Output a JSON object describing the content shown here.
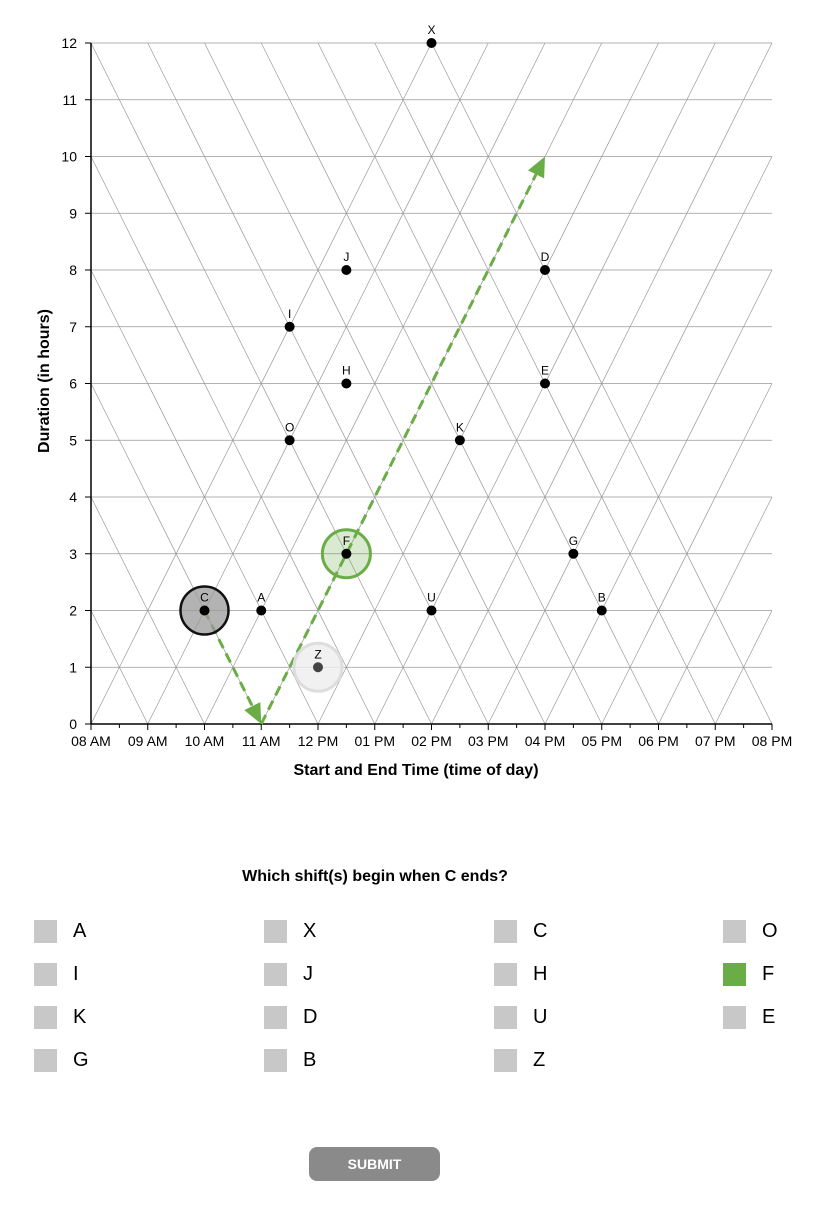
{
  "chart_data": {
    "type": "scatter",
    "subtype": "triangular-time-grid",
    "xlabel": "Start and End Time (time of day)",
    "ylabel": "Duration (in hours)",
    "x_ticks": [
      "08 AM",
      "09 AM",
      "10 AM",
      "11 AM",
      "12 PM",
      "01 PM",
      "02 PM",
      "03 PM",
      "04 PM",
      "05 PM",
      "06 PM",
      "07 PM",
      "08 PM"
    ],
    "y_ticks": [
      "0",
      "1",
      "2",
      "3",
      "4",
      "5",
      "6",
      "7",
      "8",
      "9",
      "10",
      "11",
      "12"
    ],
    "xlim": [
      8,
      20
    ],
    "ylim": [
      0,
      12
    ],
    "grid": true,
    "points": [
      {
        "label": "X",
        "midpoint": 14.0,
        "duration": 12
      },
      {
        "label": "J",
        "midpoint": 12.5,
        "duration": 8
      },
      {
        "label": "D",
        "midpoint": 16.0,
        "duration": 8
      },
      {
        "label": "I",
        "midpoint": 11.5,
        "duration": 7
      },
      {
        "label": "H",
        "midpoint": 12.5,
        "duration": 6
      },
      {
        "label": "E",
        "midpoint": 16.0,
        "duration": 6
      },
      {
        "label": "O",
        "midpoint": 11.5,
        "duration": 5
      },
      {
        "label": "K",
        "midpoint": 14.5,
        "duration": 5
      },
      {
        "label": "F",
        "midpoint": 12.5,
        "duration": 3
      },
      {
        "label": "G",
        "midpoint": 16.5,
        "duration": 3
      },
      {
        "label": "C",
        "midpoint": 10.0,
        "duration": 2
      },
      {
        "label": "A",
        "midpoint": 11.0,
        "duration": 2
      },
      {
        "label": "U",
        "midpoint": 14.0,
        "duration": 2
      },
      {
        "label": "B",
        "midpoint": 17.0,
        "duration": 2
      },
      {
        "label": "Z",
        "midpoint": 12.0,
        "duration": 1
      }
    ],
    "highlights": [
      {
        "label": "C",
        "role": "reference",
        "color": "#999999"
      },
      {
        "label": "F",
        "role": "selected",
        "color": "#6aad46"
      },
      {
        "label": "Z",
        "role": "faded",
        "color": "#dddddd"
      }
    ],
    "arrows": [
      {
        "from": [
          10,
          2
        ],
        "to": [
          11,
          0
        ],
        "color": "#6aad46"
      },
      {
        "from": [
          11,
          0
        ],
        "to": [
          16,
          10
        ],
        "color": "#6aad46"
      }
    ]
  },
  "question": "Which shift(s) begin when C ends?",
  "options": [
    {
      "label": "A",
      "checked": false
    },
    {
      "label": "X",
      "checked": false
    },
    {
      "label": "C",
      "checked": false
    },
    {
      "label": "O",
      "checked": false
    },
    {
      "label": "I",
      "checked": false
    },
    {
      "label": "J",
      "checked": false
    },
    {
      "label": "H",
      "checked": false
    },
    {
      "label": "F",
      "checked": true
    },
    {
      "label": "K",
      "checked": false
    },
    {
      "label": "D",
      "checked": false
    },
    {
      "label": "U",
      "checked": false
    },
    {
      "label": "E",
      "checked": false
    },
    {
      "label": "G",
      "checked": false
    },
    {
      "label": "B",
      "checked": false
    },
    {
      "label": "Z",
      "checked": false
    }
  ],
  "submit_label": "SUBMIT",
  "colors": {
    "accent": "#6aad46",
    "checkbox": "#c8c8c8",
    "button": "#8a8a8a"
  }
}
